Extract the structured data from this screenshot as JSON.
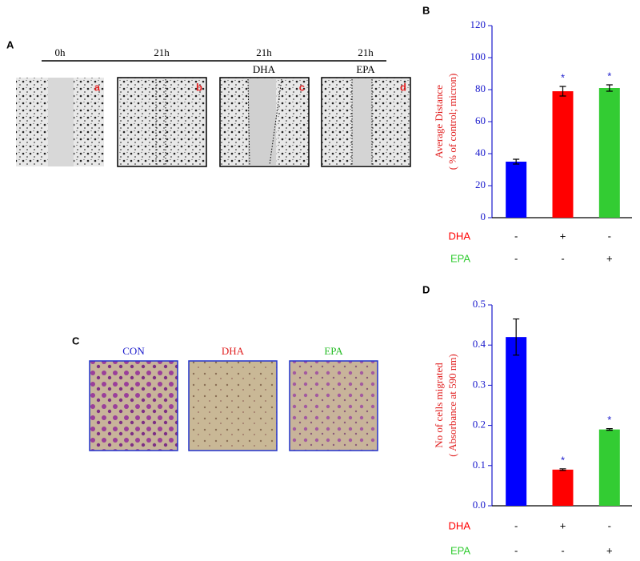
{
  "panels": {
    "A": {
      "label": "A",
      "columns": [
        {
          "time": "0h",
          "treatment": null,
          "letter": "a"
        },
        {
          "time": "21h",
          "treatment": null,
          "letter": "b"
        },
        {
          "time": "21h",
          "treatment": "DHA",
          "letter": "c"
        },
        {
          "time": "21h",
          "treatment": "EPA",
          "letter": "d"
        }
      ]
    },
    "C": {
      "label": "C",
      "images": [
        "CON",
        "DHA",
        "EPA"
      ]
    }
  },
  "chart_data": [
    {
      "type": "bar",
      "panel_label": "B",
      "y_label": [
        "Average  Distance",
        "( % of control; micron)"
      ],
      "values": [
        35,
        79,
        81
      ],
      "errors": [
        1.5,
        3,
        2
      ],
      "colors": [
        "#0000ff",
        "#ff0000",
        "#33cc33"
      ],
      "significance": [
        null,
        "*",
        "*"
      ],
      "treatments": [
        {
          "name": "DHA",
          "color": "#ff0000",
          "marks": [
            "-",
            "+",
            "-"
          ]
        },
        {
          "name": "EPA",
          "color": "#33cc33",
          "marks": [
            "-",
            "-",
            "+"
          ]
        }
      ],
      "ylim": [
        0,
        120
      ],
      "yticks": [
        0,
        20,
        40,
        60,
        80,
        100,
        120
      ]
    },
    {
      "type": "bar",
      "panel_label": "D",
      "y_label": [
        "No of cells migrated",
        "( Absorbance at 590 nm)"
      ],
      "values": [
        0.42,
        0.09,
        0.19
      ],
      "errors": [
        0.045,
        0.002,
        0.002
      ],
      "colors": [
        "#0000ff",
        "#ff0000",
        "#33cc33"
      ],
      "significance": [
        null,
        "*",
        "*"
      ],
      "treatments": [
        {
          "name": "DHA",
          "color": "#ff0000",
          "marks": [
            "-",
            "+",
            "-"
          ]
        },
        {
          "name": "EPA",
          "color": "#33cc33",
          "marks": [
            "-",
            "-",
            "+"
          ]
        }
      ],
      "ylim": [
        0,
        0.5
      ],
      "yticks": [
        {
          "value": 0,
          "label": "0.0"
        },
        0.1,
        0.2,
        0.3,
        0.4,
        0.5
      ]
    }
  ]
}
